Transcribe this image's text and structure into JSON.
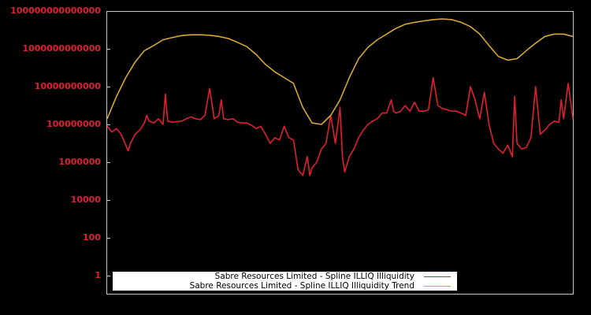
{
  "chart_data": {
    "type": "line",
    "title": "",
    "xlabel": "",
    "ylabel": "",
    "yscale": "log",
    "ylim": [
      0.3,
      100000000000000.0
    ],
    "y_ticks": [
      "1",
      "100",
      "10000",
      "1000000",
      "100000000",
      "10000000000",
      "1000000000000",
      "100000000000000"
    ],
    "grid": false,
    "legend_position": "bottom-center inside",
    "background": "#000000",
    "axis_color": "#c8c8c8",
    "tick_label_color": "#e02030",
    "x_note": "no x-axis tick labels visible; x given as fraction of plot width (0-1)",
    "series": [
      {
        "name": "Sabre Resources Limited - Spline ILLIQ Illiquidity",
        "color": "#e02030",
        "x": [
          0,
          0.01,
          0.02,
          0.03,
          0.04,
          0.045,
          0.05,
          0.06,
          0.07,
          0.08,
          0.085,
          0.09,
          0.1,
          0.11,
          0.12,
          0.125,
          0.13,
          0.14,
          0.15,
          0.16,
          0.17,
          0.18,
          0.19,
          0.2,
          0.21,
          0.22,
          0.23,
          0.24,
          0.245,
          0.25,
          0.26,
          0.27,
          0.28,
          0.29,
          0.3,
          0.31,
          0.32,
          0.33,
          0.34,
          0.35,
          0.36,
          0.37,
          0.38,
          0.39,
          0.4,
          0.41,
          0.42,
          0.43,
          0.435,
          0.44,
          0.45,
          0.46,
          0.47,
          0.48,
          0.49,
          0.5,
          0.505,
          0.51,
          0.52,
          0.53,
          0.54,
          0.55,
          0.56,
          0.57,
          0.58,
          0.59,
          0.6,
          0.61,
          0.615,
          0.62,
          0.63,
          0.64,
          0.65,
          0.66,
          0.67,
          0.68,
          0.69,
          0.7,
          0.71,
          0.72,
          0.73,
          0.74,
          0.75,
          0.76,
          0.77,
          0.78,
          0.79,
          0.8,
          0.81,
          0.82,
          0.83,
          0.84,
          0.85,
          0.86,
          0.87,
          0.875,
          0.88,
          0.89,
          0.9,
          0.91,
          0.92,
          0.93,
          0.94,
          0.95,
          0.96,
          0.97,
          0.975,
          0.98,
          0.99,
          1.0
        ],
        "values": [
          80000000.0,
          40000000.0,
          60000000.0,
          30000000.0,
          8000000.0,
          4000000.0,
          10000000.0,
          30000000.0,
          50000000.0,
          120000000.0,
          300000000.0,
          150000000.0,
          120000000.0,
          200000000.0,
          100000000.0,
          4000000000.0,
          150000000.0,
          130000000.0,
          140000000.0,
          150000000.0,
          200000000.0,
          250000000.0,
          200000000.0,
          180000000.0,
          300000000.0,
          8000000000.0,
          200000000.0,
          300000000.0,
          2000000000.0,
          200000000.0,
          180000000.0,
          200000000.0,
          130000000.0,
          120000000.0,
          120000000.0,
          90000000.0,
          60000000.0,
          80000000.0,
          30000000.0,
          10000000.0,
          20000000.0,
          15000000.0,
          80000000.0,
          20000000.0,
          15000000.0,
          400000.0,
          200000.0,
          2000000.0,
          200000.0,
          500000.0,
          1000000.0,
          5000000.0,
          10000000.0,
          300000000.0,
          10000000.0,
          800000000.0,
          2000000.0,
          300000.0,
          2000000.0,
          5000000.0,
          20000000.0,
          50000000.0,
          100000000.0,
          150000000.0,
          200000000.0,
          400000000.0,
          400000000.0,
          2000000000.0,
          500000000.0,
          400000000.0,
          500000000.0,
          1000000000.0,
          500000000.0,
          1500000000.0,
          500000000.0,
          500000000.0,
          600000000.0,
          30000000000.0,
          1000000000.0,
          700000000.0,
          600000000.0,
          500000000.0,
          500000000.0,
          400000000.0,
          300000000.0,
          10000000000.0,
          2000000000.0,
          200000000.0,
          5000000000.0,
          100000000.0,
          10000000.0,
          5000000.0,
          3000000.0,
          8000000.0,
          2000000.0,
          3000000000.0,
          10000000.0,
          5000000.0,
          6000000.0,
          20000000.0,
          10000000000.0,
          30000000.0,
          50000000.0,
          100000000.0,
          150000000.0,
          130000000.0,
          2000000000.0,
          200000000.0,
          15000000000.0,
          200000000.0
        ],
        "approximate": true
      },
      {
        "name": "Sabre Resources Limited - Spline ILLIQ Illiquidity Trend",
        "color": "#d4a832",
        "x": [
          0,
          0.02,
          0.04,
          0.06,
          0.08,
          0.1,
          0.12,
          0.14,
          0.16,
          0.18,
          0.2,
          0.22,
          0.24,
          0.26,
          0.28,
          0.3,
          0.32,
          0.34,
          0.36,
          0.38,
          0.4,
          0.42,
          0.44,
          0.46,
          0.48,
          0.5,
          0.52,
          0.54,
          0.56,
          0.58,
          0.6,
          0.62,
          0.64,
          0.66,
          0.68,
          0.7,
          0.72,
          0.74,
          0.76,
          0.78,
          0.8,
          0.82,
          0.84,
          0.86,
          0.88,
          0.9,
          0.92,
          0.94,
          0.96,
          0.98,
          1.0
        ],
        "values": [
          200000000.0,
          3000000000.0,
          30000000000.0,
          200000000000.0,
          800000000000.0,
          1500000000000.0,
          3000000000000.0,
          4000000000000.0,
          5000000000000.0,
          5500000000000.0,
          5500000000000.0,
          5200000000000.0,
          4500000000000.0,
          3500000000000.0,
          2200000000000.0,
          1300000000000.0,
          500000000000.0,
          150000000000.0,
          60000000000.0,
          30000000000.0,
          15000000000.0,
          800000000.0,
          120000000.0,
          100000000.0,
          300000000.0,
          2000000000.0,
          30000000000.0,
          300000000000.0,
          1200000000000.0,
          3000000000000.0,
          6000000000000.0,
          12000000000000.0,
          20000000000000.0,
          25000000000000.0,
          30000000000000.0,
          35000000000000.0,
          38000000000000.0,
          35000000000000.0,
          25000000000000.0,
          15000000000000.0,
          6000000000000.0,
          1500000000000.0,
          400000000000.0,
          250000000000.0,
          300000000000.0,
          800000000000.0,
          2000000000000.0,
          4500000000000.0,
          6000000000000.0,
          6000000000000.0,
          4500000000000.0
        ],
        "approximate": true
      }
    ]
  },
  "legend": {
    "items": [
      {
        "label": "Sabre Resources Limited - Spline ILLIQ Illiquidity",
        "color": "#e02030"
      },
      {
        "label": "Sabre Resources Limited - Spline ILLIQ Illiquidity Trend",
        "color": "#d4a832"
      }
    ]
  }
}
